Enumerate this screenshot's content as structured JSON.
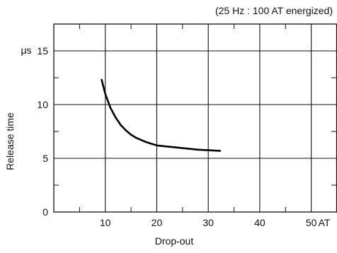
{
  "chart_data": {
    "type": "line",
    "note": "(25 Hz : 100 AT energized)",
    "xlabel": "Drop-out",
    "x_unit": "AT",
    "ylabel": "Release time",
    "y_unit": "μs",
    "xlim": [
      0,
      55
    ],
    "ylim": [
      0,
      17.5
    ],
    "x_ticks": [
      10,
      20,
      30,
      40,
      50
    ],
    "y_ticks": [
      0,
      5,
      10,
      15
    ],
    "grid": true,
    "series": [
      {
        "x": [
          9.3,
          10,
          11,
          12,
          13,
          14,
          15,
          16,
          17,
          18,
          19,
          20,
          22,
          24,
          26,
          28,
          30,
          32.3
        ],
        "y": [
          12.3,
          11.0,
          9.7,
          8.8,
          8.1,
          7.6,
          7.2,
          6.9,
          6.7,
          6.5,
          6.35,
          6.2,
          6.1,
          6.0,
          5.9,
          5.8,
          5.75,
          5.7
        ]
      }
    ]
  }
}
